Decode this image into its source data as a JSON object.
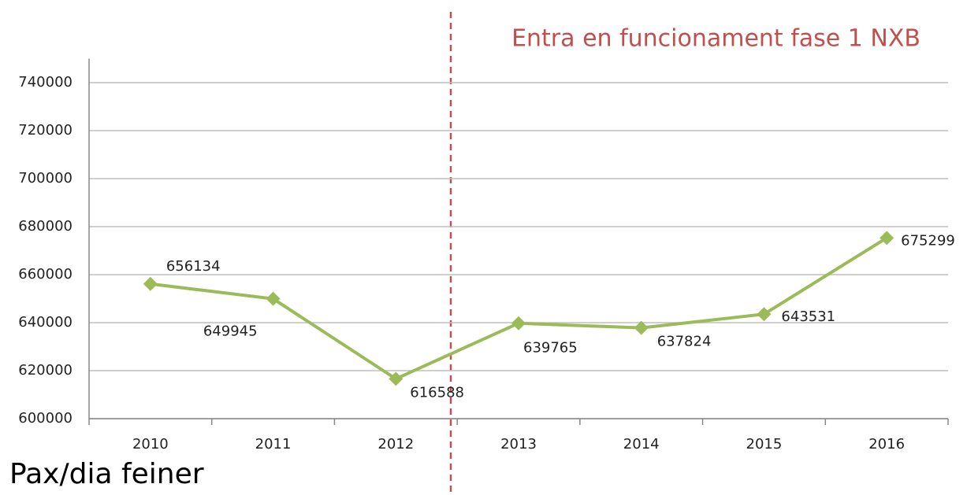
{
  "chart_data": {
    "type": "line",
    "annotation": "Entra en funcionament fase 1 NXB",
    "axis_label": "Pax/dia feiner",
    "categories": [
      "2010",
      "2011",
      "2012",
      "2013",
      "2014",
      "2015",
      "2016"
    ],
    "series": [
      {
        "name": "Pax/dia feiner",
        "color": "#9bbb59",
        "values": [
          656134,
          649945,
          616588,
          639765,
          637824,
          643531,
          675299
        ]
      }
    ],
    "ylim": [
      600000,
      750000
    ],
    "yticks": [
      600000,
      620000,
      640000,
      660000,
      680000,
      700000,
      720000,
      740000
    ],
    "grid": true
  }
}
